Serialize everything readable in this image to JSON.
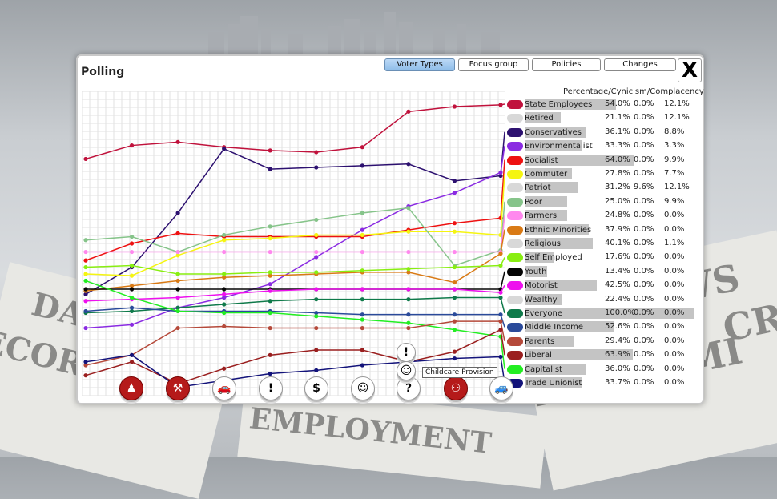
{
  "background": {
    "newspaper_headlines": [
      "DA",
      "ECORD",
      "EMPLOYMENT",
      "NEWS",
      "ECONOMI",
      "CRI"
    ]
  },
  "window": {
    "title": "Polling",
    "close_label": "X"
  },
  "tabs": [
    {
      "label": "Voter Types",
      "active": true
    },
    {
      "label": "Focus group",
      "active": false
    },
    {
      "label": "Policies",
      "active": false
    },
    {
      "label": "Changes",
      "active": false
    }
  ],
  "legend_header": "Percentage/Cynicism/Complacency",
  "groups": [
    {
      "name": "State Employees",
      "color": "#c0123c",
      "pct": "54.0%",
      "cyn": "0.0%",
      "comp": "12.1%",
      "bar": 54.0
    },
    {
      "name": "Retired",
      "color": "#d8d8d8",
      "pct": "21.1%",
      "cyn": "0.0%",
      "comp": "12.1%",
      "bar": 21.1
    },
    {
      "name": "Conservatives",
      "color": "#2d1170",
      "pct": "36.1%",
      "cyn": "0.0%",
      "comp": "8.8%",
      "bar": 36.1
    },
    {
      "name": "Environmentalist",
      "color": "#8a2be2",
      "pct": "33.3%",
      "cyn": "0.0%",
      "comp": "3.3%",
      "bar": 33.3
    },
    {
      "name": "Socialist",
      "color": "#ee1111",
      "pct": "64.0%",
      "cyn": "0.0%",
      "comp": "9.9%",
      "bar": 64.0
    },
    {
      "name": "Commuter",
      "color": "#f5f511",
      "pct": "27.8%",
      "cyn": "0.0%",
      "comp": "7.7%",
      "bar": 27.8
    },
    {
      "name": "Patriot",
      "color": "#d8d8d8",
      "pct": "31.2%",
      "cyn": "9.6%",
      "comp": "12.1%",
      "bar": 31.2
    },
    {
      "name": "Poor",
      "color": "#86c48a",
      "pct": "25.0%",
      "cyn": "0.0%",
      "comp": "9.9%",
      "bar": 25.0
    },
    {
      "name": "Farmers",
      "color": "#ff88ee",
      "pct": "24.8%",
      "cyn": "0.0%",
      "comp": "0.0%",
      "bar": 24.8
    },
    {
      "name": "Ethnic Minorities",
      "color": "#d97a15",
      "pct": "37.9%",
      "cyn": "0.0%",
      "comp": "0.0%",
      "bar": 37.9
    },
    {
      "name": "Religious",
      "color": "#d8d8d8",
      "pct": "40.1%",
      "cyn": "0.0%",
      "comp": "1.1%",
      "bar": 40.1
    },
    {
      "name": "Self Employed",
      "color": "#88ee11",
      "pct": "17.6%",
      "cyn": "0.0%",
      "comp": "0.0%",
      "bar": 17.6
    },
    {
      "name": "Youth",
      "color": "#050505",
      "pct": "13.4%",
      "cyn": "0.0%",
      "comp": "0.0%",
      "bar": 13.4
    },
    {
      "name": "Motorist",
      "color": "#ee11ee",
      "pct": "42.5%",
      "cyn": "0.0%",
      "comp": "0.0%",
      "bar": 42.5
    },
    {
      "name": "Wealthy",
      "color": "#d8d8d8",
      "pct": "22.4%",
      "cyn": "0.0%",
      "comp": "0.0%",
      "bar": 22.4
    },
    {
      "name": "Everyone",
      "color": "#0f7a4a",
      "pct": "100.0%",
      "cyn": "0.0%",
      "comp": "0.0%",
      "bar": 100.0
    },
    {
      "name": "Middle Income",
      "color": "#2a4a9a",
      "pct": "52.6%",
      "cyn": "0.0%",
      "comp": "0.0%",
      "bar": 52.6
    },
    {
      "name": "Parents",
      "color": "#b5493a",
      "pct": "29.4%",
      "cyn": "0.0%",
      "comp": "0.0%",
      "bar": 29.4
    },
    {
      "name": "Liberal",
      "color": "#9a1f1f",
      "pct": "63.9%",
      "cyn": "0.0%",
      "comp": "0.0%",
      "bar": 63.9
    },
    {
      "name": "Capitalist",
      "color": "#22ee22",
      "pct": "36.0%",
      "cyn": "0.0%",
      "comp": "0.0%",
      "bar": 36.0
    },
    {
      "name": "Trade Unionist",
      "color": "#13137a",
      "pct": "33.7%",
      "cyn": "0.0%",
      "comp": "0.0%",
      "bar": 33.7
    }
  ],
  "timeline_icons": [
    {
      "name": "budget-coins-icon",
      "glyph": "♟",
      "red": true
    },
    {
      "name": "worker-icon",
      "glyph": "⚒",
      "red": true
    },
    {
      "name": "car-icon",
      "glyph": "🚗",
      "red": false
    },
    {
      "name": "alert-icon",
      "glyph": "!",
      "red": false
    },
    {
      "name": "money-people-icon",
      "glyph": "$",
      "red": false
    },
    {
      "name": "theatre-masks-icon",
      "glyph": "☺",
      "red": false
    },
    {
      "name": "question-icon",
      "glyph": "?",
      "red": false
    },
    {
      "name": "people-red-icon",
      "glyph": "⚇",
      "red": true
    },
    {
      "name": "car2-icon",
      "glyph": "🚙",
      "red": false
    }
  ],
  "stacked_icons": [
    {
      "name": "alert-stack-icon",
      "glyph": "!"
    },
    {
      "name": "baby-icon",
      "glyph": "☺"
    }
  ],
  "tooltip": "Childcare Provision",
  "chart_data": {
    "type": "line",
    "x": [
      0,
      1,
      2,
      3,
      4,
      5,
      6,
      7,
      8,
      9
    ],
    "series": [
      {
        "name": "State Employees",
        "values": [
          58,
          62,
          63,
          61.5,
          60.5,
          60,
          61.5,
          72,
          73.5,
          74
        ]
      },
      {
        "name": "Conservatives",
        "values": [
          18,
          26,
          42,
          61,
          55,
          55.5,
          56,
          56.5,
          51.5,
          53
        ]
      },
      {
        "name": "Environmentalist",
        "values": [
          8,
          9,
          14,
          17,
          21,
          29,
          37,
          44,
          48,
          54
        ]
      },
      {
        "name": "Socialist",
        "values": [
          28,
          33,
          36,
          35,
          35,
          35,
          35,
          37,
          39,
          40.5
        ]
      },
      {
        "name": "Commuter",
        "values": [
          24,
          23.5,
          29.5,
          34,
          34.5,
          35.5,
          35.5,
          36.5,
          36.5,
          35.5
        ]
      },
      {
        "name": "Poor",
        "values": [
          34,
          35,
          30.5,
          35.5,
          38,
          40,
          42,
          43.5,
          26.5,
          31
        ]
      },
      {
        "name": "Farmers",
        "values": [
          30.5,
          30.5,
          30.5,
          30.5,
          30.5,
          30.5,
          30.5,
          30.5,
          30.5,
          30.5
        ]
      },
      {
        "name": "Ethnic Minorities",
        "values": [
          19,
          20.5,
          22,
          23,
          23.5,
          24,
          24.5,
          24.5,
          21.5,
          30
        ]
      },
      {
        "name": "Self Employed",
        "values": [
          26,
          26.5,
          24,
          24,
          24.5,
          24.5,
          25,
          25.5,
          26,
          26.5
        ]
      },
      {
        "name": "Youth",
        "values": [
          19.5,
          19.5,
          19.5,
          19.5,
          19.5,
          19.5,
          19.5,
          19.5,
          19.5,
          19.5
        ]
      },
      {
        "name": "Motorist",
        "values": [
          16,
          16.5,
          17,
          18,
          19,
          19.5,
          19.5,
          19.5,
          19.5,
          18.5
        ]
      },
      {
        "name": "Everyone",
        "values": [
          12.5,
          13,
          14,
          15,
          16,
          16.5,
          16.5,
          16.5,
          17,
          17
        ]
      },
      {
        "name": "Middle Income",
        "values": [
          13,
          14,
          13,
          13,
          13,
          12.5,
          12,
          12,
          12,
          12
        ]
      },
      {
        "name": "Capitalist",
        "values": [
          22,
          17,
          13,
          12.5,
          12.5,
          11.5,
          10.5,
          9.5,
          7.5,
          5.5
        ]
      },
      {
        "name": "Parents",
        "values": [
          -3,
          0,
          8,
          8.5,
          8,
          8,
          8,
          8,
          10,
          10
        ]
      },
      {
        "name": "Liberal",
        "values": [
          -6,
          -2,
          -8.5,
          -4,
          0,
          1.5,
          1.5,
          -2,
          1,
          7.5
        ]
      },
      {
        "name": "Trade Unionist",
        "values": [
          -2,
          0,
          -9.5,
          -7.5,
          -5.5,
          -4.5,
          -3,
          -2,
          -1,
          -0.5
        ]
      }
    ],
    "ylim": [
      -12,
      78
    ],
    "grid": true
  }
}
